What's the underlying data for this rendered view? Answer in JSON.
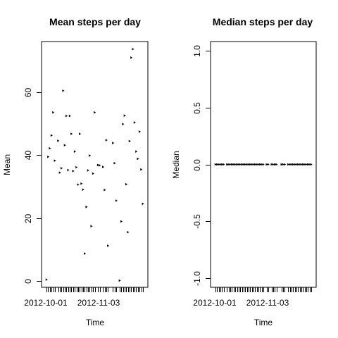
{
  "chart_data": [
    {
      "type": "scatter",
      "title": "Mean steps per day",
      "xlabel": "Time",
      "ylabel": "Mean",
      "x_tick_labels": [
        "2012-10-01",
        "2012-11-03"
      ],
      "y_ticks": [
        "0",
        "20",
        "40",
        "60"
      ],
      "xlim": [
        "2012-09-29",
        "2012-12-02"
      ],
      "ylim": [
        -2,
        76
      ],
      "points": [
        {
          "x": "2012-10-02",
          "y": 0.44
        },
        {
          "x": "2012-10-03",
          "y": 39.4
        },
        {
          "x": "2012-10-04",
          "y": 42.1
        },
        {
          "x": "2012-10-05",
          "y": 46.2
        },
        {
          "x": "2012-10-06",
          "y": 53.5
        },
        {
          "x": "2012-10-07",
          "y": 38.2
        },
        {
          "x": "2012-10-09",
          "y": 44.5
        },
        {
          "x": "2012-10-10",
          "y": 34.4
        },
        {
          "x": "2012-10-11",
          "y": 35.8
        },
        {
          "x": "2012-10-12",
          "y": 60.4
        },
        {
          "x": "2012-10-13",
          "y": 43.1
        },
        {
          "x": "2012-10-14",
          "y": 52.4
        },
        {
          "x": "2012-10-15",
          "y": 35.2
        },
        {
          "x": "2012-10-16",
          "y": 52.4
        },
        {
          "x": "2012-10-17",
          "y": 46.7
        },
        {
          "x": "2012-10-18",
          "y": 34.9
        },
        {
          "x": "2012-10-19",
          "y": 41.1
        },
        {
          "x": "2012-10-20",
          "y": 36.1
        },
        {
          "x": "2012-10-21",
          "y": 30.6
        },
        {
          "x": "2012-10-22",
          "y": 46.7
        },
        {
          "x": "2012-10-23",
          "y": 30.9
        },
        {
          "x": "2012-10-24",
          "y": 29.0
        },
        {
          "x": "2012-10-25",
          "y": 8.7
        },
        {
          "x": "2012-10-26",
          "y": 23.5
        },
        {
          "x": "2012-10-27",
          "y": 35.1
        },
        {
          "x": "2012-10-28",
          "y": 39.8
        },
        {
          "x": "2012-10-29",
          "y": 17.4
        },
        {
          "x": "2012-10-30",
          "y": 34.1
        },
        {
          "x": "2012-10-31",
          "y": 53.5
        },
        {
          "x": "2012-11-02",
          "y": 36.8
        },
        {
          "x": "2012-11-03",
          "y": 36.7
        },
        {
          "x": "2012-11-05",
          "y": 36.2
        },
        {
          "x": "2012-11-06",
          "y": 28.9
        },
        {
          "x": "2012-11-07",
          "y": 44.7
        },
        {
          "x": "2012-11-08",
          "y": 11.2
        },
        {
          "x": "2012-11-11",
          "y": 43.8
        },
        {
          "x": "2012-11-12",
          "y": 37.4
        },
        {
          "x": "2012-11-13",
          "y": 25.5
        },
        {
          "x": "2012-11-15",
          "y": 0.14
        },
        {
          "x": "2012-11-16",
          "y": 18.9
        },
        {
          "x": "2012-11-17",
          "y": 49.8
        },
        {
          "x": "2012-11-18",
          "y": 52.5
        },
        {
          "x": "2012-11-19",
          "y": 30.7
        },
        {
          "x": "2012-11-20",
          "y": 15.5
        },
        {
          "x": "2012-11-21",
          "y": 44.4
        },
        {
          "x": "2012-11-22",
          "y": 70.9
        },
        {
          "x": "2012-11-23",
          "y": 73.6
        },
        {
          "x": "2012-11-24",
          "y": 50.3
        },
        {
          "x": "2012-11-25",
          "y": 41.1
        },
        {
          "x": "2012-11-26",
          "y": 38.8
        },
        {
          "x": "2012-11-27",
          "y": 47.4
        },
        {
          "x": "2012-11-28",
          "y": 35.4
        },
        {
          "x": "2012-11-29",
          "y": 24.5
        }
      ]
    },
    {
      "type": "scatter",
      "title": "Median steps per day",
      "xlabel": "Time",
      "ylabel": "Median",
      "x_tick_labels": [
        "2012-10-01",
        "2012-11-03"
      ],
      "y_ticks": [
        "-1.0",
        "-0.5",
        "0.0",
        "0.5",
        "1.0"
      ],
      "xlim": [
        "2012-09-29",
        "2012-12-02"
      ],
      "ylim": [
        -1.08,
        1.08
      ],
      "points": [
        {
          "x": "2012-10-02",
          "y": 0
        },
        {
          "x": "2012-10-03",
          "y": 0
        },
        {
          "x": "2012-10-04",
          "y": 0
        },
        {
          "x": "2012-10-05",
          "y": 0
        },
        {
          "x": "2012-10-06",
          "y": 0
        },
        {
          "x": "2012-10-07",
          "y": 0
        },
        {
          "x": "2012-10-09",
          "y": 0
        },
        {
          "x": "2012-10-10",
          "y": 0
        },
        {
          "x": "2012-10-11",
          "y": 0
        },
        {
          "x": "2012-10-12",
          "y": 0
        },
        {
          "x": "2012-10-13",
          "y": 0
        },
        {
          "x": "2012-10-14",
          "y": 0
        },
        {
          "x": "2012-10-15",
          "y": 0
        },
        {
          "x": "2012-10-16",
          "y": 0
        },
        {
          "x": "2012-10-17",
          "y": 0
        },
        {
          "x": "2012-10-18",
          "y": 0
        },
        {
          "x": "2012-10-19",
          "y": 0
        },
        {
          "x": "2012-10-20",
          "y": 0
        },
        {
          "x": "2012-10-21",
          "y": 0
        },
        {
          "x": "2012-10-22",
          "y": 0
        },
        {
          "x": "2012-10-23",
          "y": 0
        },
        {
          "x": "2012-10-24",
          "y": 0
        },
        {
          "x": "2012-10-25",
          "y": 0
        },
        {
          "x": "2012-10-26",
          "y": 0
        },
        {
          "x": "2012-10-27",
          "y": 0
        },
        {
          "x": "2012-10-28",
          "y": 0
        },
        {
          "x": "2012-10-29",
          "y": 0
        },
        {
          "x": "2012-10-30",
          "y": 0
        },
        {
          "x": "2012-10-31",
          "y": 0
        },
        {
          "x": "2012-11-02",
          "y": 0
        },
        {
          "x": "2012-11-03",
          "y": 0
        },
        {
          "x": "2012-11-05",
          "y": 0
        },
        {
          "x": "2012-11-06",
          "y": 0
        },
        {
          "x": "2012-11-07",
          "y": 0
        },
        {
          "x": "2012-11-08",
          "y": 0
        },
        {
          "x": "2012-11-11",
          "y": 0
        },
        {
          "x": "2012-11-12",
          "y": 0
        },
        {
          "x": "2012-11-13",
          "y": 0
        },
        {
          "x": "2012-11-15",
          "y": 0
        },
        {
          "x": "2012-11-16",
          "y": 0
        },
        {
          "x": "2012-11-17",
          "y": 0
        },
        {
          "x": "2012-11-18",
          "y": 0
        },
        {
          "x": "2012-11-19",
          "y": 0
        },
        {
          "x": "2012-11-20",
          "y": 0
        },
        {
          "x": "2012-11-21",
          "y": 0
        },
        {
          "x": "2012-11-22",
          "y": 0
        },
        {
          "x": "2012-11-23",
          "y": 0
        },
        {
          "x": "2012-11-24",
          "y": 0
        },
        {
          "x": "2012-11-25",
          "y": 0
        },
        {
          "x": "2012-11-26",
          "y": 0
        },
        {
          "x": "2012-11-27",
          "y": 0
        },
        {
          "x": "2012-11-28",
          "y": 0
        },
        {
          "x": "2012-11-29",
          "y": 0
        }
      ]
    }
  ]
}
